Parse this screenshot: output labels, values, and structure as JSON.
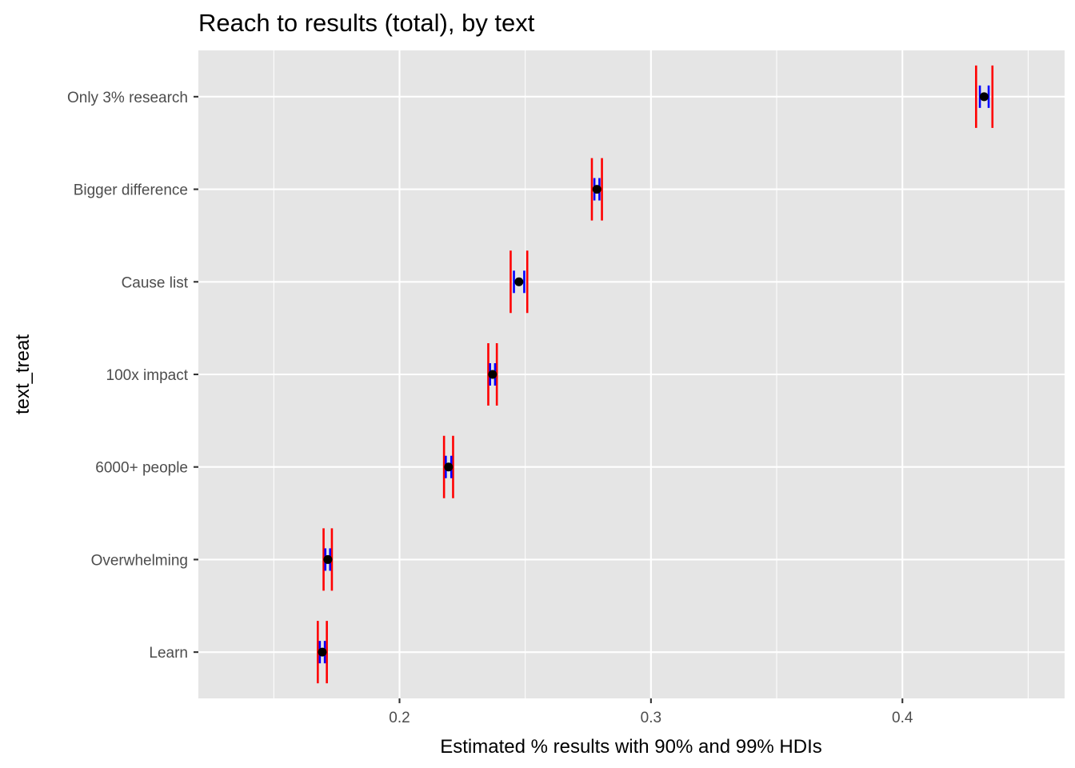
{
  "chart_data": {
    "type": "dot-interval",
    "title": "Reach to results (total), by text",
    "xlabel": "Estimated % results with 90% and 99% HDIs",
    "ylabel": "text_treat",
    "xlim": [
      0.12,
      0.4645
    ],
    "x_ticks": [
      "0.2",
      "0.3",
      "0.4"
    ],
    "x_tick_values": [
      0.2,
      0.3,
      0.4
    ],
    "grid": true,
    "categories": [
      "Only 3% research",
      "Bigger difference",
      "Cause list",
      "100x impact",
      "6000+ people",
      "Overwhelming",
      "Learn"
    ],
    "points": [
      {
        "label": "Only 3% research",
        "estimate": 0.4325,
        "hdi90": [
          0.4308,
          0.4343
        ],
        "hdi99": [
          0.4293,
          0.4358
        ]
      },
      {
        "label": "Bigger difference",
        "estimate": 0.2785,
        "hdi90": [
          0.2775,
          0.2795
        ],
        "hdi99": [
          0.2765,
          0.2805
        ]
      },
      {
        "label": "Cause list",
        "estimate": 0.2475,
        "hdi90": [
          0.2455,
          0.2496
        ],
        "hdi99": [
          0.2442,
          0.2508
        ]
      },
      {
        "label": "100x impact",
        "estimate": 0.237,
        "hdi90": [
          0.236,
          0.238
        ],
        "hdi99": [
          0.2353,
          0.2387
        ]
      },
      {
        "label": "6000+ people",
        "estimate": 0.2195,
        "hdi90": [
          0.2184,
          0.2206
        ],
        "hdi99": [
          0.2177,
          0.2213
        ]
      },
      {
        "label": "Overwhelming",
        "estimate": 0.1715,
        "hdi90": [
          0.1705,
          0.1724
        ],
        "hdi99": [
          0.1698,
          0.1731
        ]
      },
      {
        "label": "Learn",
        "estimate": 0.1693,
        "hdi90": [
          0.1683,
          0.1703
        ],
        "hdi99": [
          0.1675,
          0.1711
        ]
      }
    ],
    "colors": {
      "panel": "#e5e5e5",
      "grid": "#ffffff",
      "hdi90": "#0000ff",
      "hdi99": "#ff0000",
      "point": "#000000",
      "tick": "#333333"
    }
  }
}
